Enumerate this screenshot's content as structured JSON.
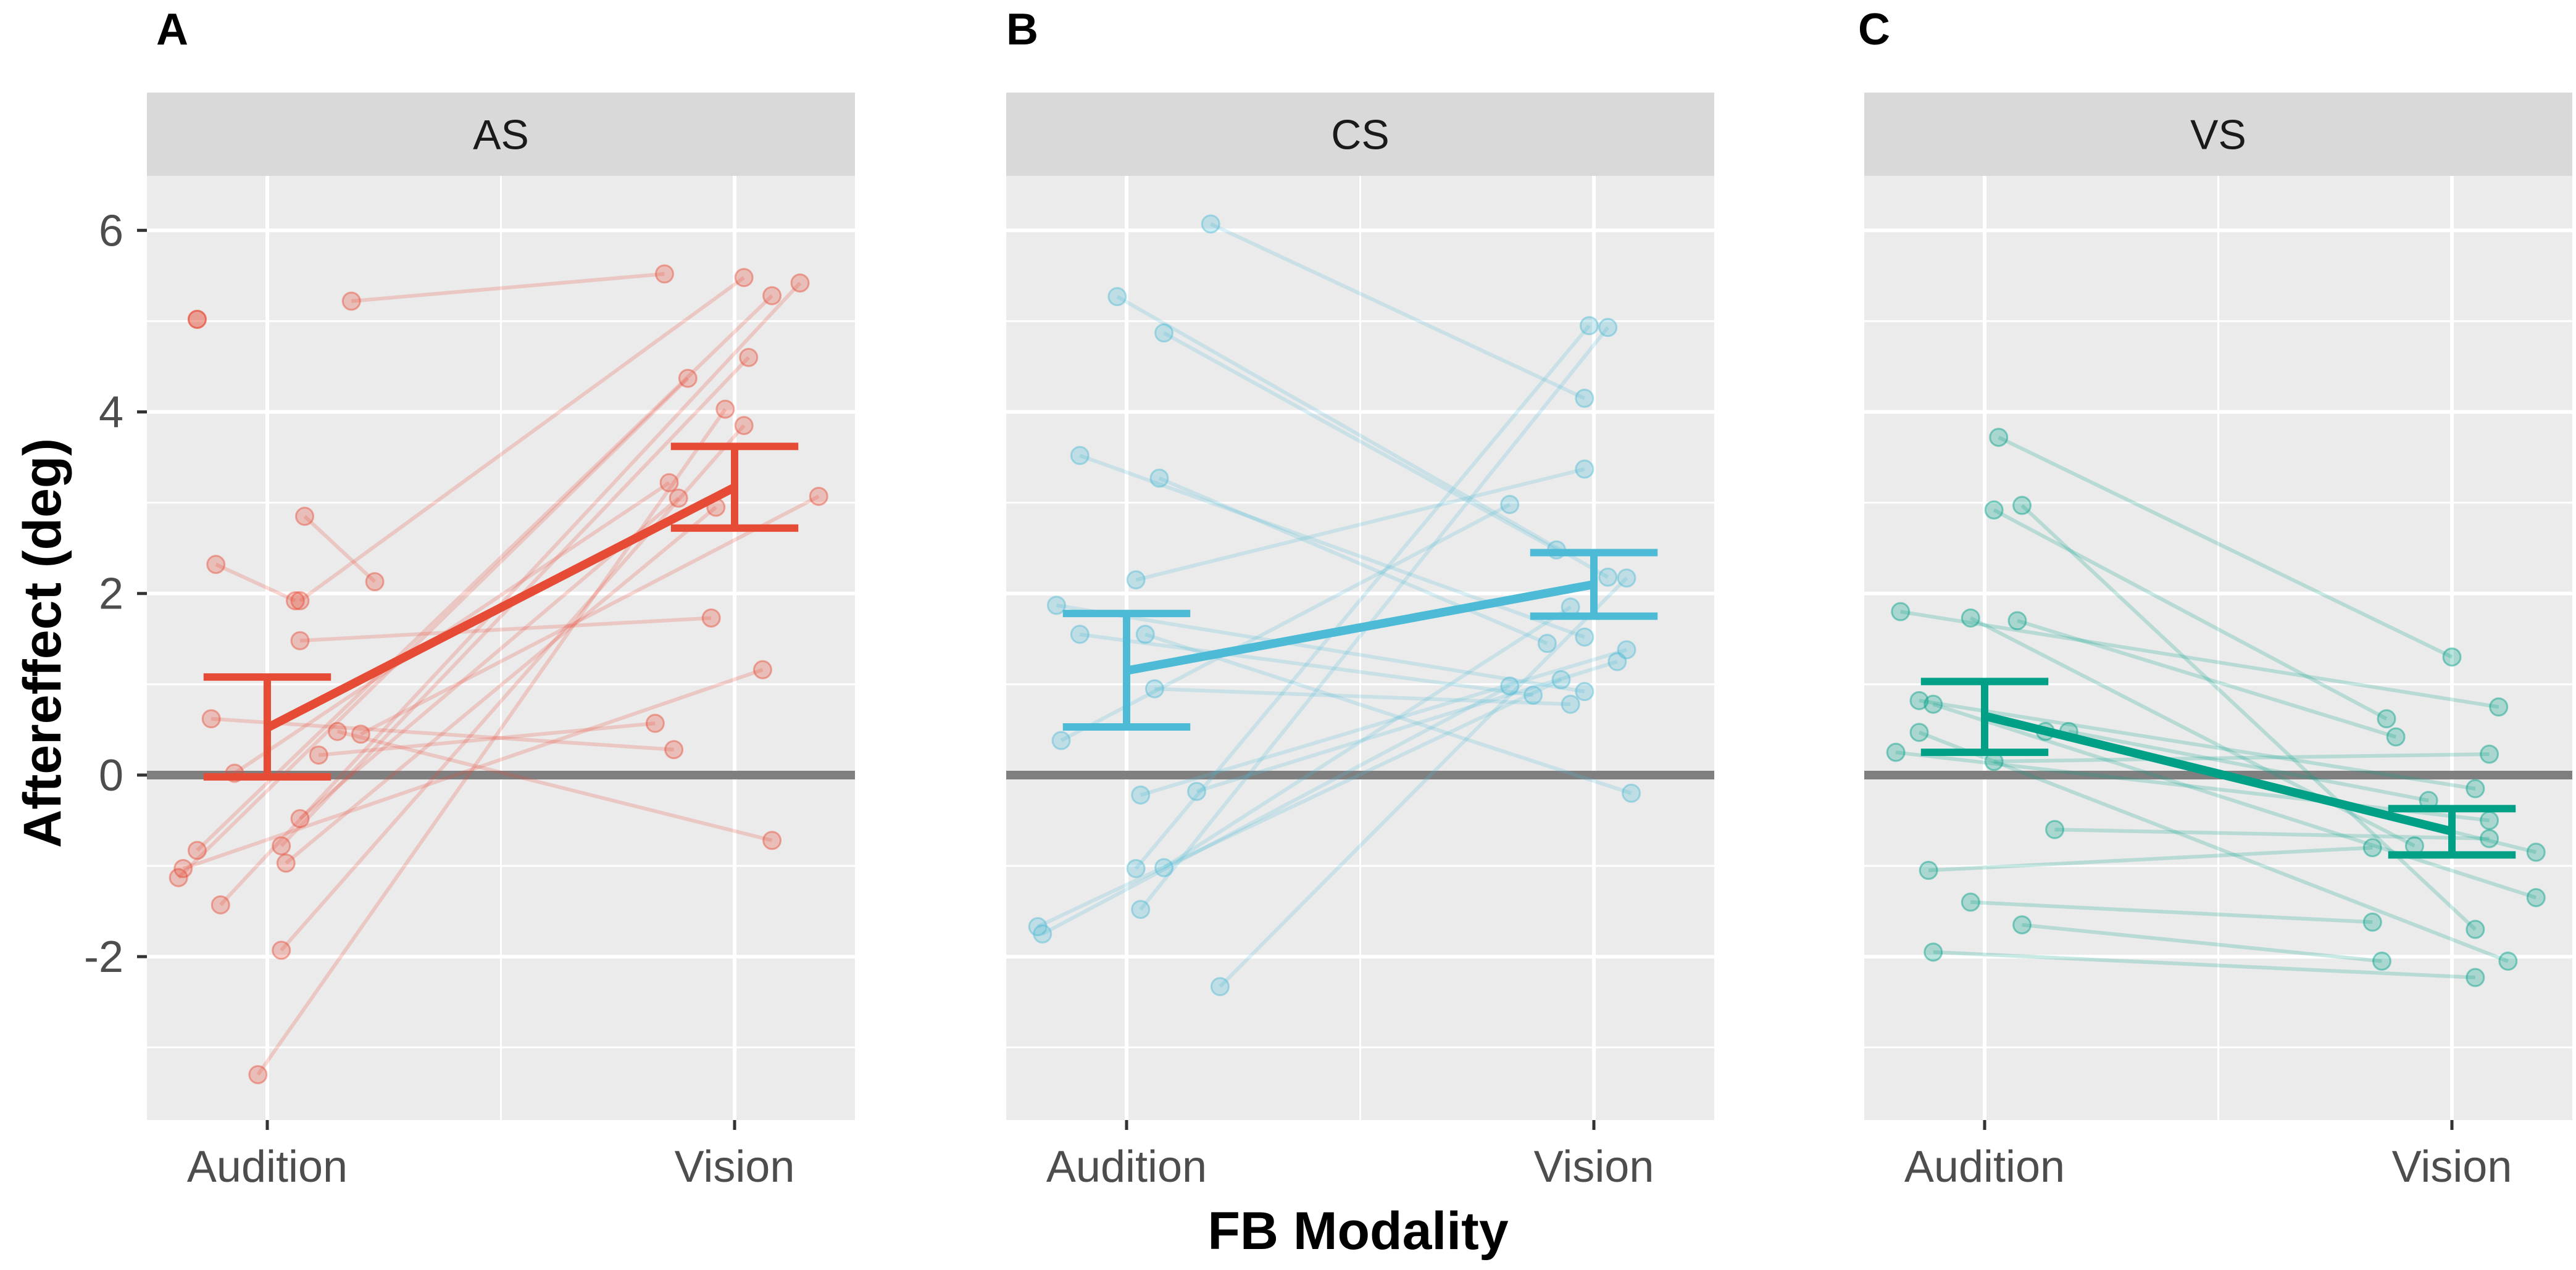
{
  "figure": {
    "y_axis_label": "Aftereffect (deg)",
    "x_axis_label": "FB Modality"
  },
  "colors": {
    "panel_background": "#ebebeb",
    "strip_background": "#d9d9d9",
    "grid": "#ffffff",
    "zero_line": "#7f7f7f",
    "AS": "#e64b35",
    "CS": "#4dbbd5",
    "VS": "#00a087"
  },
  "chart_data": [
    {
      "type": "line",
      "panel_tag": "A",
      "strip_label": "AS",
      "color_key": "AS",
      "categories": [
        "Audition",
        "Vision"
      ],
      "ylim": [
        -3.8,
        6.6
      ],
      "yticks": [
        -2,
        0,
        2,
        4,
        6
      ],
      "ytick_labels": [
        "-2",
        "0",
        "2",
        "4",
        "6"
      ],
      "xlabel": "FB Modality",
      "ylabel": "Aftereffect (deg)",
      "mean": {
        "values": [
          0.52,
          3.17
        ],
        "ci_low": [
          -0.02,
          2.72
        ],
        "ci_high": [
          1.08,
          3.62
        ]
      },
      "subjects": [
        {
          "x1": -0.15,
          "y1": 5.02,
          "x2": -0.15,
          "y2": 5.02
        },
        {
          "x1": 0.18,
          "y1": 5.22,
          "x2": 0.85,
          "y2": 5.52
        },
        {
          "x1": -0.11,
          "y1": 2.32,
          "x2": 0.06,
          "y2": 1.92
        },
        {
          "x1": 0.08,
          "y1": 2.85,
          "x2": 0.23,
          "y2": 2.13
        },
        {
          "x1": 0.07,
          "y1": 1.92,
          "x2": 1.02,
          "y2": 5.48
        },
        {
          "x1": 0.07,
          "y1": 1.48,
          "x2": 0.95,
          "y2": 1.73
        },
        {
          "x1": -0.07,
          "y1": 0.02,
          "x2": 0.86,
          "y2": 3.22
        },
        {
          "x1": -0.19,
          "y1": -1.13,
          "x2": 0.9,
          "y2": 4.37
        },
        {
          "x1": -0.15,
          "y1": -0.83,
          "x2": 1.08,
          "y2": 5.28
        },
        {
          "x1": -0.1,
          "y1": -1.43,
          "x2": 1.14,
          "y2": 5.42
        },
        {
          "x1": 0.03,
          "y1": -0.78,
          "x2": 1.03,
          "y2": 4.6
        },
        {
          "x1": 0.07,
          "y1": -0.48,
          "x2": 0.88,
          "y2": 3.05
        },
        {
          "x1": 0.04,
          "y1": -0.97,
          "x2": 0.96,
          "y2": 2.95
        },
        {
          "x1": 0.03,
          "y1": -1.93,
          "x2": 1.02,
          "y2": 3.85
        },
        {
          "x1": -0.02,
          "y1": -3.3,
          "x2": 0.98,
          "y2": 4.03
        },
        {
          "x1": 0.2,
          "y1": 0.45,
          "x2": 1.18,
          "y2": 3.07
        },
        {
          "x1": -0.18,
          "y1": -1.03,
          "x2": 1.06,
          "y2": 1.16
        },
        {
          "x1": 0.11,
          "y1": 0.22,
          "x2": 0.83,
          "y2": 0.57
        },
        {
          "x1": -0.12,
          "y1": 0.62,
          "x2": 0.87,
          "y2": 0.28
        },
        {
          "x1": 0.15,
          "y1": 0.48,
          "x2": 1.08,
          "y2": -0.72
        }
      ]
    },
    {
      "type": "line",
      "panel_tag": "B",
      "strip_label": "CS",
      "color_key": "CS",
      "categories": [
        "Audition",
        "Vision"
      ],
      "ylim": [
        -3.8,
        6.6
      ],
      "yticks": [
        -2,
        0,
        2,
        4,
        6
      ],
      "ytick_labels": [
        "-2",
        "0",
        "2",
        "4",
        "6"
      ],
      "xlabel": "FB Modality",
      "ylabel": "Aftereffect (deg)",
      "mean": {
        "values": [
          1.15,
          2.1
        ],
        "ci_low": [
          0.53,
          1.75
        ],
        "ci_high": [
          1.78,
          2.45
        ]
      },
      "subjects": [
        {
          "x1": 0.18,
          "y1": 6.07,
          "x2": 0.98,
          "y2": 4.15
        },
        {
          "x1": -0.02,
          "y1": 5.27,
          "x2": 1.03,
          "y2": 2.18
        },
        {
          "x1": 0.08,
          "y1": 4.87,
          "x2": 0.92,
          "y2": 2.48
        },
        {
          "x1": -0.1,
          "y1": 3.52,
          "x2": 0.98,
          "y2": 1.52
        },
        {
          "x1": 0.07,
          "y1": 3.27,
          "x2": 0.9,
          "y2": 1.45
        },
        {
          "x1": 0.02,
          "y1": 2.15,
          "x2": 0.98,
          "y2": 3.37
        },
        {
          "x1": -0.15,
          "y1": 1.87,
          "x2": 0.98,
          "y2": 0.92
        },
        {
          "x1": -0.1,
          "y1": 1.55,
          "x2": 0.87,
          "y2": 0.88
        },
        {
          "x1": -0.14,
          "y1": 0.38,
          "x2": 0.82,
          "y2": 2.98
        },
        {
          "x1": 0.03,
          "y1": -0.22,
          "x2": 1.07,
          "y2": 1.38
        },
        {
          "x1": 0.15,
          "y1": -0.18,
          "x2": 1.05,
          "y2": 1.25
        },
        {
          "x1": 0.02,
          "y1": -1.03,
          "x2": 0.99,
          "y2": 4.95
        },
        {
          "x1": 0.08,
          "y1": -1.02,
          "x2": 0.95,
          "y2": 1.85
        },
        {
          "x1": 0.03,
          "y1": -1.48,
          "x2": 1.03,
          "y2": 4.93
        },
        {
          "x1": -0.19,
          "y1": -1.67,
          "x2": 0.93,
          "y2": 1.05
        },
        {
          "x1": -0.18,
          "y1": -1.75,
          "x2": 0.82,
          "y2": 0.98
        },
        {
          "x1": 0.2,
          "y1": -2.33,
          "x2": 1.07,
          "y2": 2.17
        },
        {
          "x1": 0.04,
          "y1": 1.55,
          "x2": 1.08,
          "y2": -0.2
        },
        {
          "x1": 0.06,
          "y1": 0.95,
          "x2": 0.95,
          "y2": 0.78
        }
      ]
    },
    {
      "type": "line",
      "panel_tag": "C",
      "strip_label": "VS",
      "color_key": "VS",
      "categories": [
        "Audition",
        "Vision"
      ],
      "ylim": [
        -3.8,
        6.6
      ],
      "yticks": [
        -2,
        0,
        2,
        4,
        6
      ],
      "ytick_labels": [
        "-2",
        "0",
        "2",
        "4",
        "6"
      ],
      "xlabel": "FB Modality",
      "ylabel": "Aftereffect (deg)",
      "mean": {
        "values": [
          0.65,
          -0.62
        ],
        "ci_low": [
          0.25,
          -0.88
        ],
        "ci_high": [
          1.03,
          -0.37
        ]
      },
      "subjects": [
        {
          "x1": 0.03,
          "y1": 3.72,
          "x2": 1.0,
          "y2": 1.3
        },
        {
          "x1": 0.02,
          "y1": 2.92,
          "x2": 0.86,
          "y2": 0.62
        },
        {
          "x1": 0.08,
          "y1": 2.97,
          "x2": 1.05,
          "y2": -1.7
        },
        {
          "x1": -0.18,
          "y1": 1.8,
          "x2": 1.1,
          "y2": 0.75
        },
        {
          "x1": -0.03,
          "y1": 1.73,
          "x2": 0.92,
          "y2": -0.78
        },
        {
          "x1": 0.07,
          "y1": 1.7,
          "x2": 0.88,
          "y2": 0.42
        },
        {
          "x1": -0.14,
          "y1": 0.82,
          "x2": 1.05,
          "y2": -0.15
        },
        {
          "x1": -0.11,
          "y1": 0.78,
          "x2": 1.18,
          "y2": -1.35
        },
        {
          "x1": -0.14,
          "y1": 0.47,
          "x2": 1.12,
          "y2": -2.05
        },
        {
          "x1": 0.13,
          "y1": 0.48,
          "x2": 1.18,
          "y2": -0.85
        },
        {
          "x1": 0.18,
          "y1": 0.48,
          "x2": 0.95,
          "y2": -0.28
        },
        {
          "x1": -0.19,
          "y1": 0.25,
          "x2": 1.08,
          "y2": -0.5
        },
        {
          "x1": 0.02,
          "y1": 0.15,
          "x2": 1.08,
          "y2": 0.23
        },
        {
          "x1": 0.15,
          "y1": -0.6,
          "x2": 1.08,
          "y2": -0.7
        },
        {
          "x1": -0.12,
          "y1": -1.05,
          "x2": 0.83,
          "y2": -0.8
        },
        {
          "x1": -0.03,
          "y1": -1.4,
          "x2": 0.83,
          "y2": -1.62
        },
        {
          "x1": 0.08,
          "y1": -1.65,
          "x2": 0.85,
          "y2": -2.05
        },
        {
          "x1": -0.11,
          "y1": -1.95,
          "x2": 1.05,
          "y2": -2.23
        }
      ]
    }
  ]
}
